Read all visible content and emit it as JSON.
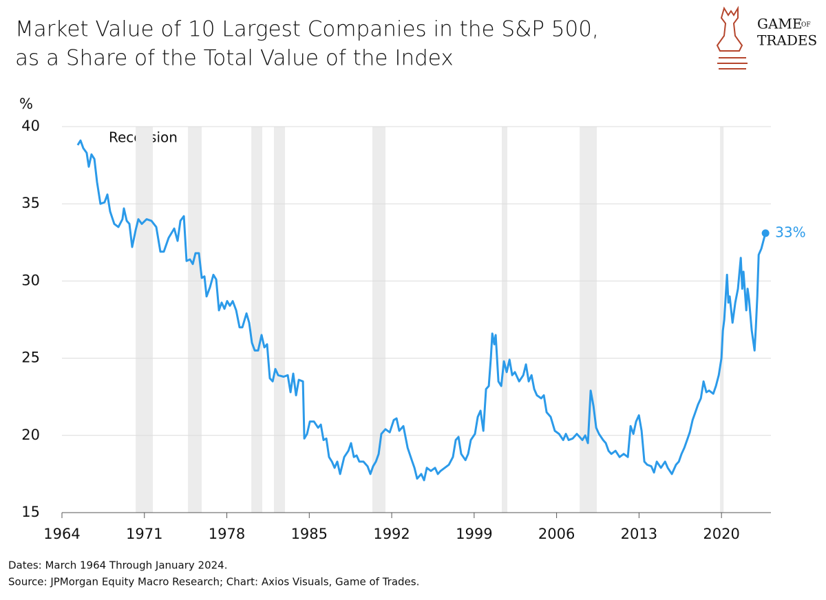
{
  "chart_data": {
    "type": "line",
    "title": [
      "Market Value of 10 Largest Companies in the S&P 500,",
      "as a Share of the Total Value of the Index"
    ],
    "logo": [
      "GAME",
      "OF",
      "TRADES"
    ],
    "y_label": "%",
    "recession_label": "Recession",
    "annotation": "33%",
    "notes": [
      "Dates: March 1964 Through January 2024.",
      "Source: JPMorgan Equity Macro Research; Chart: Axios Visuals, Game of Trades."
    ],
    "color": "#2b9ae9",
    "recession_color": "#ececec",
    "grid": true,
    "xlim": [
      1964,
      2024.2
    ],
    "xticks": [
      1964,
      1971,
      1978,
      1985,
      1992,
      1999,
      2006,
      2013,
      2020
    ],
    "ylim": [
      15,
      40
    ],
    "yticks": [
      15,
      20,
      25,
      30,
      35,
      40
    ],
    "recessions": [
      [
        1970.26,
        1971.72
      ],
      [
        1974.7,
        1975.87
      ],
      [
        1980.08,
        1981.01
      ],
      [
        1982.0,
        1982.94
      ],
      [
        1990.36,
        1991.47
      ],
      [
        2001.35,
        2001.82
      ],
      [
        2007.96,
        2009.42
      ],
      [
        2019.88,
        2020.18
      ]
    ],
    "x": [
      1965.34,
      1965.58,
      1965.81,
      1966.1,
      1966.28,
      1966.51,
      1966.75,
      1966.98,
      1967.27,
      1967.62,
      1967.86,
      1968.09,
      1968.44,
      1968.79,
      1969.14,
      1969.26,
      1969.5,
      1969.73,
      1969.96,
      1970.26,
      1970.49,
      1970.78,
      1971.19,
      1971.6,
      1972.01,
      1972.36,
      1972.65,
      1973.06,
      1973.53,
      1973.82,
      1974.06,
      1974.35,
      1974.58,
      1974.87,
      1975.11,
      1975.34,
      1975.63,
      1975.87,
      1976.1,
      1976.28,
      1976.57,
      1976.86,
      1977.1,
      1977.33,
      1977.56,
      1977.8,
      1978.03,
      1978.26,
      1978.5,
      1978.79,
      1979.08,
      1979.32,
      1979.67,
      1979.9,
      1980.13,
      1980.37,
      1980.66,
      1980.95,
      1981.19,
      1981.42,
      1981.65,
      1981.89,
      1982.12,
      1982.36,
      1982.82,
      1983.17,
      1983.41,
      1983.64,
      1983.88,
      1984.11,
      1984.46,
      1984.58,
      1984.81,
      1985.05,
      1985.4,
      1985.75,
      1985.98,
      1986.21,
      1986.45,
      1986.68,
      1986.92,
      1987.15,
      1987.38,
      1987.62,
      1987.97,
      1988.32,
      1988.55,
      1988.79,
      1989.02,
      1989.25,
      1989.6,
      1989.95,
      1990.19,
      1990.42,
      1990.66,
      1990.89,
      1991.12,
      1991.47,
      1991.83,
      1992.18,
      1992.41,
      1992.64,
      1992.99,
      1993.35,
      1993.7,
      1993.93,
      1994.16,
      1994.51,
      1994.75,
      1994.98,
      1995.33,
      1995.68,
      1995.92,
      1996.15,
      1996.5,
      1996.85,
      1997.2,
      1997.44,
      1997.67,
      1997.9,
      1998.26,
      1998.49,
      1998.72,
      1999.07,
      1999.31,
      1999.54,
      1999.78,
      2000.01,
      2000.24,
      2000.42,
      2000.54,
      2000.71,
      2000.83,
      2001.06,
      2001.3,
      2001.53,
      2001.76,
      2002.0,
      2002.23,
      2002.46,
      2002.82,
      2003.17,
      2003.4,
      2003.63,
      2003.87,
      2004.1,
      2004.33,
      2004.69,
      2004.92,
      2005.15,
      2005.5,
      2005.85,
      2006.21,
      2006.56,
      2006.79,
      2007.02,
      2007.37,
      2007.72,
      2007.96,
      2008.19,
      2008.43,
      2008.66,
      2008.89,
      2009.13,
      2009.36,
      2009.6,
      2009.95,
      2010.18,
      2010.41,
      2010.65,
      2011.0,
      2011.35,
      2011.7,
      2012.05,
      2012.28,
      2012.52,
      2012.75,
      2012.99,
      2013.22,
      2013.45,
      2013.69,
      2014.04,
      2014.27,
      2014.51,
      2014.86,
      2015.21,
      2015.44,
      2015.79,
      2016.14,
      2016.38,
      2016.61,
      2016.85,
      2017.08,
      2017.31,
      2017.55,
      2017.78,
      2018.01,
      2018.25,
      2018.48,
      2018.72,
      2018.95,
      2019.3,
      2019.53,
      2019.77,
      2020.0,
      2020.12,
      2020.24,
      2020.47,
      2020.59,
      2020.7,
      2020.94,
      2021.17,
      2021.4,
      2021.64,
      2021.76,
      2021.87,
      2022.11,
      2022.22,
      2022.34,
      2022.57,
      2022.81,
      2022.92,
      2023.04,
      2023.16,
      2023.39,
      2023.63,
      2023.74
    ],
    "values": [
      38.8,
      39.1,
      38.6,
      38.3,
      37.4,
      38.2,
      37.9,
      36.4,
      35.0,
      35.1,
      35.6,
      34.5,
      33.7,
      33.5,
      34.0,
      34.7,
      33.9,
      33.7,
      32.2,
      33.3,
      34.0,
      33.7,
      34.0,
      33.9,
      33.5,
      31.9,
      31.9,
      32.8,
      33.4,
      32.6,
      33.9,
      34.2,
      31.3,
      31.4,
      31.1,
      31.8,
      31.8,
      30.2,
      30.3,
      29.0,
      29.6,
      30.4,
      30.1,
      28.1,
      28.6,
      28.2,
      28.7,
      28.4,
      28.7,
      28.1,
      27.0,
      27.0,
      27.9,
      27.3,
      26.0,
      25.5,
      25.5,
      26.5,
      25.7,
      25.9,
      23.7,
      23.5,
      24.3,
      23.9,
      23.8,
      23.9,
      22.8,
      24.0,
      22.6,
      23.6,
      23.5,
      19.8,
      20.1,
      20.9,
      20.9,
      20.5,
      20.7,
      19.7,
      19.8,
      18.6,
      18.3,
      17.9,
      18.3,
      17.5,
      18.6,
      19.0,
      19.5,
      18.6,
      18.7,
      18.3,
      18.3,
      18.0,
      17.5,
      18.0,
      18.3,
      18.8,
      20.1,
      20.4,
      20.2,
      21.0,
      21.1,
      20.3,
      20.6,
      19.2,
      18.4,
      17.9,
      17.2,
      17.5,
      17.1,
      17.9,
      17.7,
      17.9,
      17.5,
      17.7,
      17.9,
      18.1,
      18.6,
      19.7,
      19.9,
      18.8,
      18.4,
      18.8,
      19.7,
      20.1,
      21.2,
      21.6,
      20.3,
      23.0,
      23.2,
      25.0,
      26.6,
      25.9,
      26.5,
      23.5,
      23.2,
      24.8,
      24.1,
      24.9,
      23.9,
      24.1,
      23.5,
      23.9,
      24.6,
      23.5,
      23.9,
      23.0,
      22.6,
      22.4,
      22.6,
      21.5,
      21.2,
      20.3,
      20.1,
      19.7,
      20.1,
      19.7,
      19.8,
      20.1,
      19.9,
      19.7,
      20.0,
      19.5,
      22.9,
      21.9,
      20.5,
      20.1,
      19.7,
      19.5,
      19.0,
      18.8,
      19.0,
      18.6,
      18.8,
      18.6,
      20.6,
      20.1,
      20.9,
      21.3,
      20.3,
      18.3,
      18.1,
      18.0,
      17.6,
      18.3,
      17.9,
      18.3,
      17.9,
      17.5,
      18.1,
      18.3,
      18.8,
      19.2,
      19.7,
      20.2,
      21.0,
      21.5,
      22.0,
      22.4,
      23.5,
      22.8,
      22.9,
      22.7,
      23.2,
      23.9,
      25.0,
      26.8,
      27.5,
      30.4,
      28.6,
      29.0,
      27.3,
      28.6,
      29.5,
      31.5,
      29.5,
      30.6,
      28.1,
      29.5,
      28.8,
      26.8,
      25.5,
      27.0,
      29.0,
      31.7,
      32.1,
      32.8,
      33.1
    ]
  }
}
